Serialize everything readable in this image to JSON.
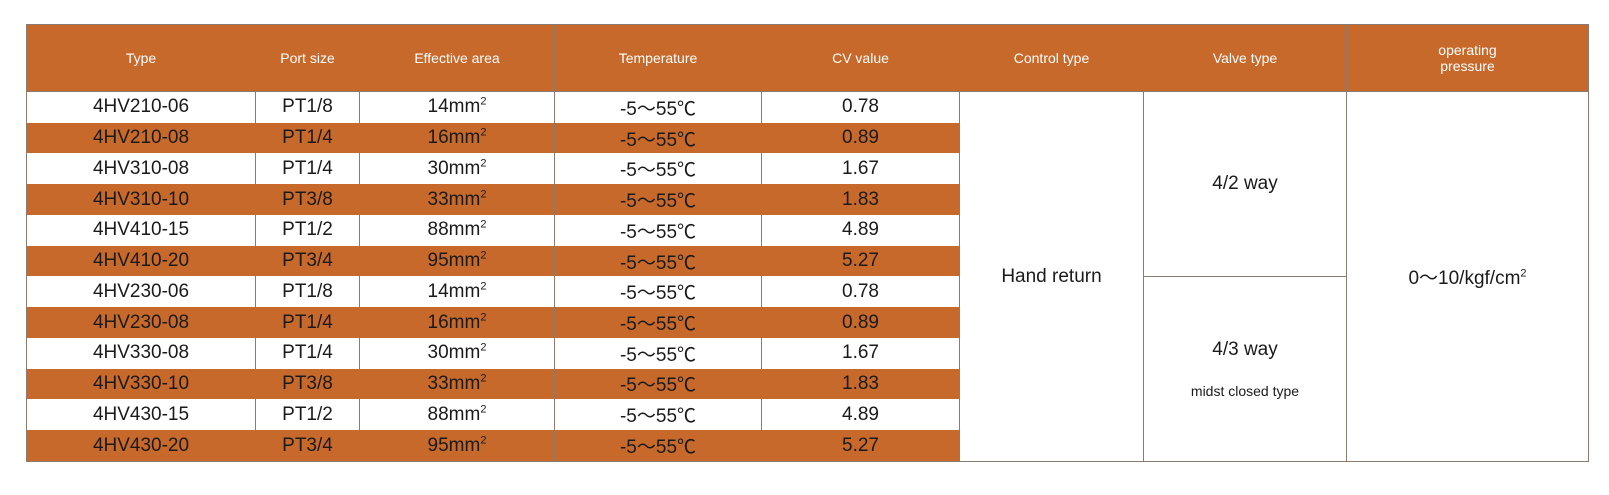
{
  "headers": {
    "type": "Type",
    "port_size": "Port size",
    "effective_area": "Effective area",
    "temperature": "Temperature",
    "cv_value": "CV value",
    "control_type": "Control type",
    "valve_type": "Valve type",
    "operating_pressure_line1": "operating",
    "operating_pressure_line2": "pressure"
  },
  "rows": [
    {
      "type": "4HV210-06",
      "port": "PT1/8",
      "area": "14mm",
      "temp": "-5～55℃",
      "cv": "0.78"
    },
    {
      "type": "4HV210-08",
      "port": "PT1/4",
      "area": "16mm",
      "temp": "-5～55℃",
      "cv": "0.89"
    },
    {
      "type": "4HV310-08",
      "port": "PT1/4",
      "area": "30mm",
      "temp": "-5～55℃",
      "cv": "1.67"
    },
    {
      "type": "4HV310-10",
      "port": "PT3/8",
      "area": "33mm",
      "temp": "-5～55℃",
      "cv": "1.83"
    },
    {
      "type": "4HV410-15",
      "port": "PT1/2",
      "area": "88mm",
      "temp": "-5～55℃",
      "cv": "4.89"
    },
    {
      "type": "4HV410-20",
      "port": "PT3/4",
      "area": "95mm",
      "temp": "-5～55℃",
      "cv": "5.27"
    },
    {
      "type": "4HV230-06",
      "port": "PT1/8",
      "area": "14mm",
      "temp": "-5～55℃",
      "cv": "0.78"
    },
    {
      "type": "4HV230-08",
      "port": "PT1/4",
      "area": "16mm",
      "temp": "-5～55℃",
      "cv": "0.89"
    },
    {
      "type": "4HV330-08",
      "port": "PT1/4",
      "area": "30mm",
      "temp": "-5～55℃",
      "cv": "1.67"
    },
    {
      "type": "4HV330-10",
      "port": "PT3/8",
      "area": "33mm",
      "temp": "-5～55℃",
      "cv": "1.83"
    },
    {
      "type": "4HV430-15",
      "port": "PT1/2",
      "area": "88mm",
      "temp": "-5～55℃",
      "cv": "4.89"
    },
    {
      "type": "4HV430-20",
      "port": "PT3/4",
      "area": "95mm",
      "temp": "-5～55℃",
      "cv": "5.27"
    }
  ],
  "area_unit_superscript": "2",
  "control_type_value": "Hand return",
  "valve_type_group1": "4/2 way",
  "valve_type_group2": "4/3 way",
  "valve_type_group2_note": "midst closed type",
  "operating_pressure_value": "0～10/kgf/cm",
  "operating_pressure_superscript": "2",
  "colors": {
    "header_bg": "#c8692c",
    "stripe_bg": "#c8692c",
    "border": "#8c7a6e"
  }
}
